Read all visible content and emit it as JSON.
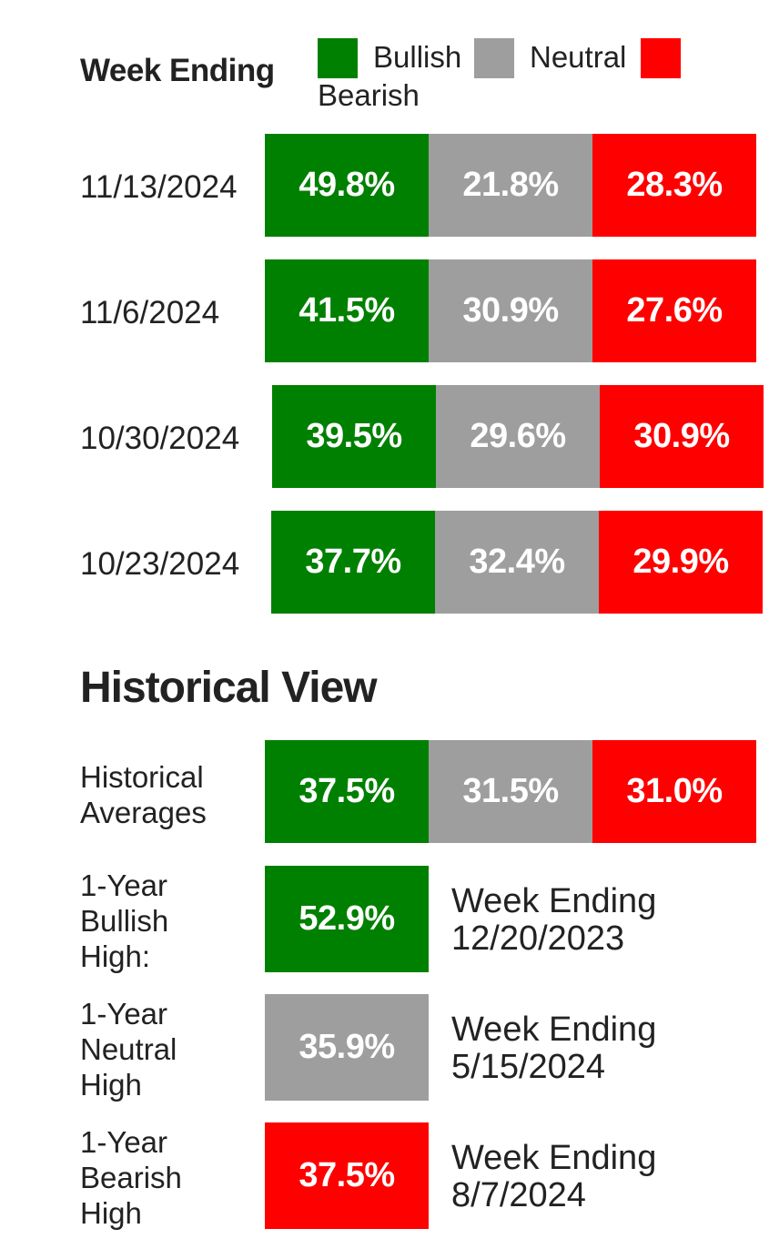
{
  "legend": {
    "title": "Week Ending",
    "items": [
      {
        "label": "Bullish",
        "color": "#008000"
      },
      {
        "label": "Neutral",
        "color": "#9e9e9e"
      },
      {
        "label": "Bearish",
        "color": "#ff0000"
      }
    ]
  },
  "chart_data": [
    {
      "type": "bar",
      "orientation": "horizontal-stacked-100",
      "categories": [
        "11/13/2024",
        "11/6/2024",
        "10/30/2024",
        "10/23/2024"
      ],
      "series": [
        {
          "name": "Bullish",
          "values": [
            49.8,
            41.5,
            39.5,
            37.7
          ],
          "labels": [
            "49.8%",
            "41.5%",
            "39.5%",
            "37.7%"
          ],
          "color": "#008000"
        },
        {
          "name": "Neutral",
          "values": [
            21.8,
            30.9,
            29.6,
            32.4
          ],
          "labels": [
            "21.8%",
            "30.9%",
            "29.6%",
            "32.4%"
          ],
          "color": "#9e9e9e"
        },
        {
          "name": "Bearish",
          "values": [
            28.3,
            27.6,
            30.9,
            29.9
          ],
          "labels": [
            "28.3%",
            "27.6%",
            "30.9%",
            "29.9%"
          ],
          "color": "#ff0000"
        }
      ]
    },
    {
      "type": "table",
      "title": "Historical View",
      "averages": {
        "label": "Historical Averages",
        "values": [
          {
            "series": "Bullish",
            "value": 37.5,
            "text": "37.5%",
            "color": "#008000"
          },
          {
            "series": "Neutral",
            "value": 31.5,
            "text": "31.5%",
            "color": "#9e9e9e"
          },
          {
            "series": "Bearish",
            "value": 31.0,
            "text": "31.0%",
            "color": "#ff0000"
          }
        ]
      },
      "highs": [
        {
          "label": "1-Year Bullish High:",
          "value": 52.9,
          "text": "52.9%",
          "note_line1": "Week Ending",
          "note_line2": "12/20/2023",
          "color": "#008000"
        },
        {
          "label": "1-Year Neutral High",
          "value": 35.9,
          "text": "35.9%",
          "note_line1": "Week Ending",
          "note_line2": "5/15/2024",
          "color": "#9e9e9e"
        },
        {
          "label": "1-Year Bearish High",
          "value": 37.5,
          "text": "37.5%",
          "note_line1": "Week Ending",
          "note_line2": "8/7/2024",
          "color": "#ff0000"
        }
      ]
    }
  ]
}
